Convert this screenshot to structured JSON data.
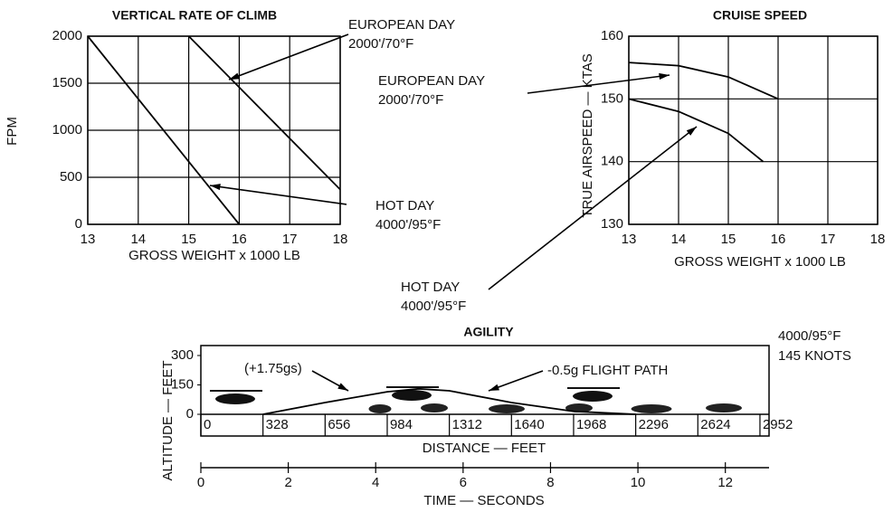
{
  "chart_data": [
    {
      "type": "line",
      "title": "VERTICAL RATE OF CLIMB",
      "x_label": "GROSS WEIGHT x 1000 LB",
      "y_label": "FPM",
      "xlim": [
        13,
        18
      ],
      "xticks": [
        13,
        14,
        15,
        16,
        17,
        18
      ],
      "ylim": [
        0,
        2000
      ],
      "yticks": [
        0,
        500,
        1000,
        1500,
        2000
      ],
      "grid": true,
      "series": [
        {
          "name": "EUROPEAN DAY",
          "condition": "2000'/70°F",
          "color": "#000000",
          "x": [
            15,
            18
          ],
          "values": [
            2000,
            370
          ]
        },
        {
          "name": "HOT DAY",
          "condition": "4000'/95°F",
          "color": "#000000",
          "x": [
            13,
            16
          ],
          "values": [
            2000,
            0
          ]
        }
      ]
    },
    {
      "type": "line",
      "title": "CRUISE SPEED",
      "x_label": "GROSS WEIGHT x 1000 LB",
      "y_label": "TRUE AIRSPEED — KTAS",
      "xlim": [
        13,
        18
      ],
      "xticks": [
        13,
        14,
        15,
        16,
        17,
        18
      ],
      "ylim": [
        130,
        160
      ],
      "yticks": [
        130,
        140,
        150,
        160
      ],
      "grid": true,
      "series": [
        {
          "name": "EUROPEAN DAY",
          "condition": "2000'/70°F",
          "color": "#000000",
          "x": [
            13,
            14,
            15,
            16
          ],
          "values": [
            155.8,
            155.3,
            153.5,
            150
          ]
        },
        {
          "name": "HOT DAY",
          "condition": "4000'/95°F",
          "color": "#000000",
          "x": [
            13,
            14,
            15,
            15.7
          ],
          "values": [
            150,
            148,
            144.5,
            140
          ]
        }
      ]
    },
    {
      "type": "line",
      "title": "AGILITY",
      "x_label": "DISTANCE — FEET",
      "x2_label": "TIME — SECONDS",
      "y_label": "ALTITUDE — FEET",
      "xlim": [
        0,
        3000
      ],
      "xticks": [
        0,
        328,
        656,
        984,
        1312,
        1640,
        1968,
        2296,
        2624,
        2952
      ],
      "x2lim": [
        0,
        13
      ],
      "x2ticks": [
        0,
        2,
        4,
        6,
        8,
        10,
        12
      ],
      "ylim": [
        0,
        300
      ],
      "yticks": [
        0,
        150,
        300
      ],
      "grid": false,
      "annotations": [
        "(+1.75gs)",
        "-0.5g FLIGHT PATH",
        "4000/95°F",
        "145 KNOTS"
      ],
      "series": [
        {
          "color": "#000000",
          "x": [
            328,
            656,
            984,
            1150,
            1312,
            1640,
            1968,
            2296
          ],
          "values": [
            0,
            60,
            115,
            130,
            120,
            60,
            15,
            0
          ]
        }
      ]
    }
  ]
}
